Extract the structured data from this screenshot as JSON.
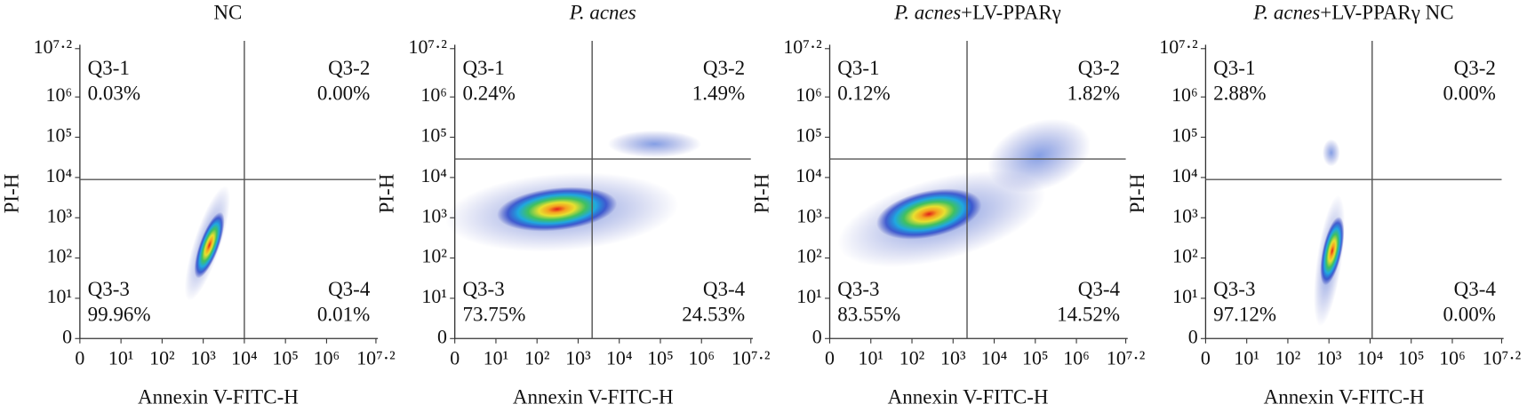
{
  "chart_data": [
    {
      "type": "scatter",
      "title": "NC",
      "xlabel": "Annexin V-FITC-H",
      "ylabel": "PI-H",
      "xlim": [
        0,
        7.2
      ],
      "ylim": [
        0,
        7.2
      ],
      "xticks": [
        0,
        {
          "value": 1,
          "label": "10¹"
        },
        {
          "value": 2,
          "label": "10²"
        },
        {
          "value": 3,
          "label": "10³"
        },
        {
          "value": 4,
          "label": "10⁴"
        },
        {
          "value": 5,
          "label": "10⁵"
        },
        {
          "value": 6,
          "label": "10⁶"
        },
        {
          "value": 7.2,
          "label": "10⁷·²"
        }
      ],
      "yticks": [
        0,
        {
          "value": 1,
          "label": "10¹"
        },
        {
          "value": 2,
          "label": "10²"
        },
        {
          "value": 3,
          "label": "10³"
        },
        {
          "value": 4,
          "label": "10⁴"
        },
        {
          "value": 5,
          "label": "10⁵"
        },
        {
          "value": 6,
          "label": "10⁶"
        },
        {
          "value": 7.2,
          "label": "10⁷·²"
        }
      ],
      "gate_x": 4.0,
      "gate_y": 3.95,
      "quadrants": [
        "Q3-1",
        "Q3-2",
        "Q3-3",
        "Q3-4"
      ],
      "values": [
        0.03,
        0.0,
        99.96,
        0.01
      ],
      "value_labels": [
        "0.03%",
        "0.00%",
        "99.96%",
        "0.01%"
      ]
    },
    {
      "type": "scatter",
      "title_italic": "P. acnes",
      "xlabel": "Annexin V-FITC-H",
      "ylabel": "PI-H",
      "xlim": [
        0,
        7.2
      ],
      "ylim": [
        0,
        7.2
      ],
      "xticks": [
        0,
        {
          "value": 1,
          "label": "10¹"
        },
        {
          "value": 2,
          "label": "10²"
        },
        {
          "value": 3,
          "label": "10³"
        },
        {
          "value": 4,
          "label": "10⁴"
        },
        {
          "value": 5,
          "label": "10⁵"
        },
        {
          "value": 6,
          "label": "10⁶"
        },
        {
          "value": 7.2,
          "label": "10⁷·²"
        }
      ],
      "yticks": [
        0,
        {
          "value": 1,
          "label": "10¹"
        },
        {
          "value": 2,
          "label": "10²"
        },
        {
          "value": 3,
          "label": "10³"
        },
        {
          "value": 4,
          "label": "10⁴"
        },
        {
          "value": 5,
          "label": "10⁵"
        },
        {
          "value": 6,
          "label": "10⁶"
        },
        {
          "value": 7.2,
          "label": "10⁷·²"
        }
      ],
      "gate_x": 3.34,
      "gate_y": 4.46,
      "quadrants": [
        "Q3-1",
        "Q3-2",
        "Q3-3",
        "Q3-4"
      ],
      "values": [
        0.24,
        1.49,
        73.75,
        24.53
      ],
      "value_labels": [
        "0.24%",
        "1.49%",
        "73.75%",
        "24.53%"
      ]
    },
    {
      "type": "scatter",
      "title_italic": "P. acnes",
      "title": "+LV-PPARγ",
      "xlabel": "Annexin V-FITC-H",
      "ylabel": "PI-H",
      "xlim": [
        0,
        7.2
      ],
      "ylim": [
        0,
        7.2
      ],
      "xticks": [
        0,
        {
          "value": 1,
          "label": "10¹"
        },
        {
          "value": 2,
          "label": "10²"
        },
        {
          "value": 3,
          "label": "10³"
        },
        {
          "value": 4,
          "label": "10⁴"
        },
        {
          "value": 5,
          "label": "10⁵"
        },
        {
          "value": 6,
          "label": "10⁶"
        },
        {
          "value": 7.2,
          "label": "10⁷·²"
        }
      ],
      "yticks": [
        0,
        {
          "value": 1,
          "label": "10¹"
        },
        {
          "value": 2,
          "label": "10²"
        },
        {
          "value": 3,
          "label": "10³"
        },
        {
          "value": 4,
          "label": "10⁴"
        },
        {
          "value": 5,
          "label": "10⁵"
        },
        {
          "value": 6,
          "label": "10⁶"
        },
        {
          "value": 7.2,
          "label": "10⁷·²"
        }
      ],
      "gate_x": 3.34,
      "gate_y": 4.46,
      "quadrants": [
        "Q3-1",
        "Q3-2",
        "Q3-3",
        "Q3-4"
      ],
      "values": [
        0.12,
        1.82,
        83.55,
        14.52
      ],
      "value_labels": [
        "0.12%",
        "1.82%",
        "83.55%",
        "14.52%"
      ]
    },
    {
      "type": "scatter",
      "title_italic": "P. acnes",
      "title": "+LV-PPARγ NC",
      "xlabel": "Annexin V-FITC-H",
      "ylabel": "PI-H",
      "xlim": [
        0,
        7.2
      ],
      "ylim": [
        0,
        7.2
      ],
      "xticks": [
        0,
        {
          "value": 1,
          "label": "10¹"
        },
        {
          "value": 2,
          "label": "10²"
        },
        {
          "value": 3,
          "label": "10³"
        },
        {
          "value": 4,
          "label": "10⁴"
        },
        {
          "value": 5,
          "label": "10⁵"
        },
        {
          "value": 6,
          "label": "10⁶"
        },
        {
          "value": 7.2,
          "label": "10⁷·²"
        }
      ],
      "yticks": [
        0,
        {
          "value": 1,
          "label": "10¹"
        },
        {
          "value": 2,
          "label": "10²"
        },
        {
          "value": 3,
          "label": "10³"
        },
        {
          "value": 4,
          "label": "10⁴"
        },
        {
          "value": 5,
          "label": "10⁵"
        },
        {
          "value": 6,
          "label": "10⁶"
        },
        {
          "value": 7.2,
          "label": "10⁷·²"
        }
      ],
      "gate_x": 4.05,
      "gate_y": 3.95,
      "quadrants": [
        "Q3-1",
        "Q3-2",
        "Q3-3",
        "Q3-4"
      ],
      "values": [
        2.88,
        0.0,
        97.12,
        0.0
      ],
      "value_labels": [
        "2.88%",
        "0.00%",
        "97.12%",
        "0.00%"
      ]
    }
  ]
}
